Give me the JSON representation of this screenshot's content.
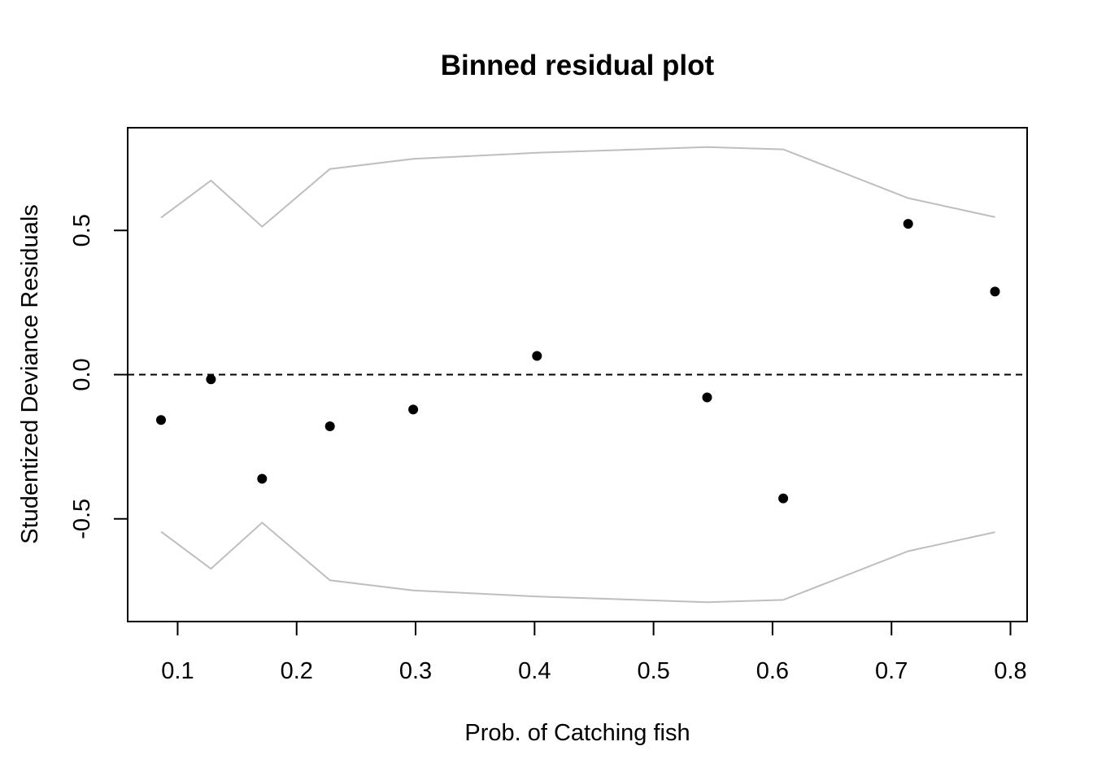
{
  "chart_data": {
    "type": "scatter",
    "title": "Binned residual plot",
    "xlabel": "Prob. of Catching fish",
    "ylabel": "Studentized Deviance Residuals",
    "xlim": [
      0.058,
      0.814
    ],
    "ylim": [
      -0.856,
      0.856
    ],
    "x_ticks": [
      0.1,
      0.2,
      0.3,
      0.4,
      0.5,
      0.6,
      0.7,
      0.8
    ],
    "x_tick_labels": [
      "0.1",
      "0.2",
      "0.3",
      "0.4",
      "0.5",
      "0.6",
      "0.7",
      "0.8"
    ],
    "y_ticks": [
      -0.5,
      0.0,
      0.5
    ],
    "y_tick_labels": [
      "-0.5",
      "0.0",
      "0.5"
    ],
    "grid": false,
    "reference_line": {
      "y": 0.0,
      "style": "dashed",
      "color": "#000000"
    },
    "points": {
      "x": [
        0.086,
        0.128,
        0.171,
        0.228,
        0.298,
        0.402,
        0.545,
        0.609,
        0.714,
        0.787
      ],
      "y": [
        -0.157,
        -0.016,
        -0.361,
        -0.179,
        -0.121,
        0.065,
        -0.079,
        -0.429,
        0.523,
        0.288
      ],
      "color": "#000000"
    },
    "bands": {
      "color": "#bebebe",
      "x": [
        0.086,
        0.128,
        0.171,
        0.228,
        0.298,
        0.402,
        0.545,
        0.609,
        0.714,
        0.787
      ],
      "upper": [
        0.544,
        0.673,
        0.513,
        0.713,
        0.748,
        0.769,
        0.789,
        0.781,
        0.612,
        0.546
      ],
      "lower": [
        -0.544,
        -0.673,
        -0.513,
        -0.713,
        -0.748,
        -0.769,
        -0.789,
        -0.781,
        -0.612,
        -0.546
      ]
    }
  }
}
